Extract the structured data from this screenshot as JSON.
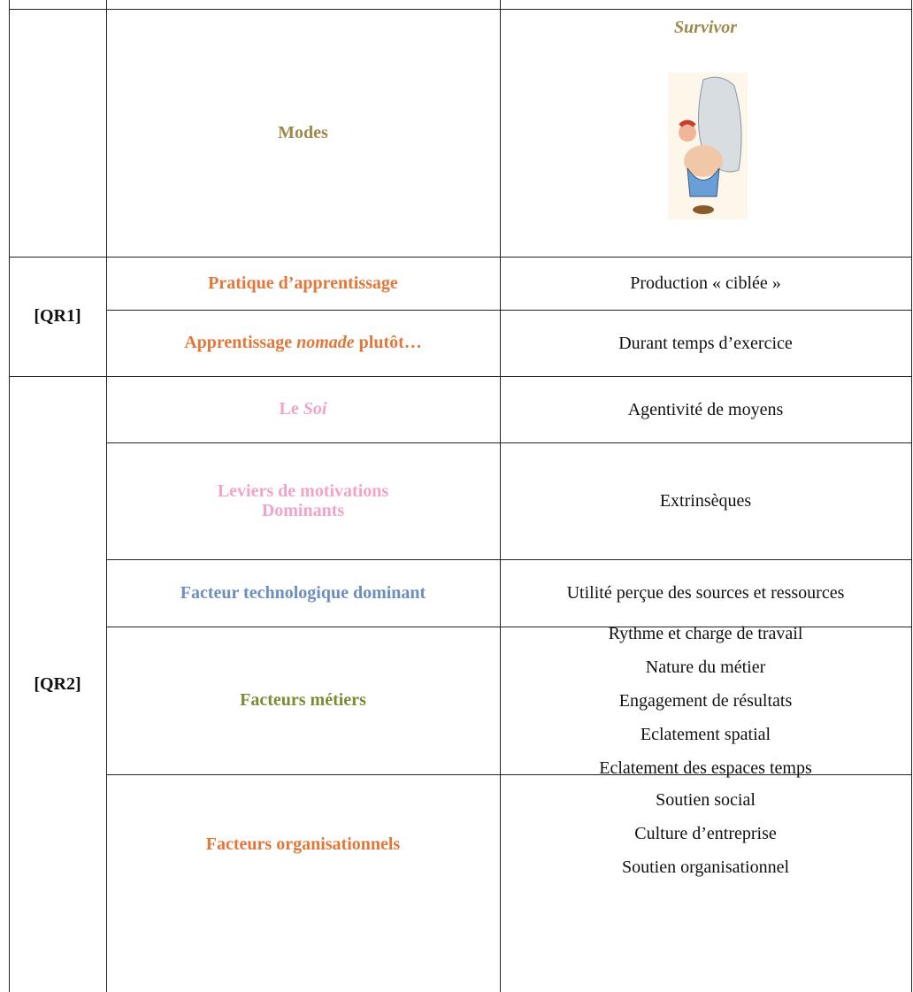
{
  "header": {
    "modes": "Modes",
    "column_title": "Survivor"
  },
  "groups": [
    {
      "label": "[QR1]",
      "rows": [
        {
          "factor": "Pratique d’apprentissage",
          "values": [
            "Production « ciblée »"
          ]
        },
        {
          "factor": [
            "Apprentissage ",
            "nomade",
            " plutôt…"
          ],
          "values": [
            "Durant temps d’exercice"
          ]
        }
      ]
    },
    {
      "label": "[QR2]",
      "rows": [
        {
          "factor": [
            "Le ",
            "Soi"
          ],
          "values": [
            "Agentivité de moyens"
          ]
        },
        {
          "factor": [
            "Leviers de motivations",
            "Dominants"
          ],
          "values": [
            "Extrinsèques"
          ]
        },
        {
          "factor": "Facteur technologique dominant",
          "values": [
            "Utilité perçue des sources et ressources"
          ]
        },
        {
          "factor": "Facteurs métiers",
          "values": [
            "Rythme et charge de travail",
            "Nature du métier",
            "Engagement de résultats",
            "Eclatement spatial",
            "Eclatement des espaces temps"
          ]
        },
        {
          "factor": "Facteurs organisationnels",
          "values": [
            "Soutien social",
            "Culture d’entreprise",
            "Soutien organisationnel"
          ]
        }
      ]
    }
  ]
}
